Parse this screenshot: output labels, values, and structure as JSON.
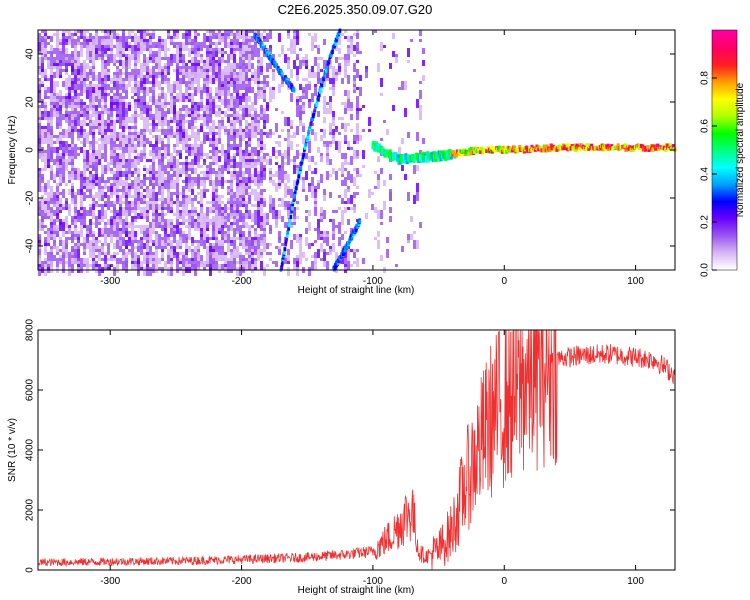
{
  "title": "C2E6.2025.350.09.07.G20",
  "chart_data": [
    {
      "type": "heatmap",
      "name": "spectrogram",
      "xlabel": "Height of straight line (km)",
      "ylabel": "Frequency (Hz)",
      "xlim": [
        -355,
        130
      ],
      "ylim": [
        -50,
        50
      ],
      "xticks": [
        -300,
        -200,
        -100,
        0,
        100
      ],
      "yticks": [
        -40,
        -20,
        0,
        20,
        40
      ],
      "colorbar": {
        "label": "Normalized spectral amplitude",
        "range": [
          0,
          1
        ],
        "ticks": [
          0.0,
          0.2,
          0.4,
          0.6,
          0.8
        ],
        "colors": [
          "#ffffff",
          "#d7b4f5",
          "#9a55f0",
          "#6a00ff",
          "#0000ff",
          "#00a0ff",
          "#00ffff",
          "#00ff80",
          "#00ff00",
          "#b0ff00",
          "#ffff00",
          "#ffa000",
          "#ff2020",
          "#ff0060",
          "#ff00a0"
        ]
      },
      "features": [
        {
          "name": "direct-signal-track",
          "points": [
            [
              -100,
              2
            ],
            [
              -80,
              -4
            ],
            [
              -60,
              -3
            ],
            [
              -40,
              -2
            ],
            [
              -20,
              0
            ],
            [
              0,
              0
            ],
            [
              40,
              1
            ],
            [
              100,
              1
            ],
            [
              130,
              1
            ]
          ]
        },
        {
          "name": "streak-1",
          "points": [
            [
              -190,
              48
            ],
            [
              -170,
              32
            ],
            [
              -160,
              25
            ]
          ]
        },
        {
          "name": "streak-2",
          "points": [
            [
              -170,
              -50
            ],
            [
              -160,
              -20
            ],
            [
              -150,
              5
            ],
            [
              -135,
              35
            ],
            [
              -125,
              50
            ]
          ]
        },
        {
          "name": "streak-3",
          "points": [
            [
              -130,
              -50
            ],
            [
              -120,
              -40
            ],
            [
              -110,
              -30
            ]
          ]
        }
      ]
    },
    {
      "type": "line",
      "name": "snr",
      "xlabel": "Height of straight line (km)",
      "ylabel": "SNR (10 * v/v)",
      "xlim": [
        -355,
        130
      ],
      "ylim": [
        0,
        8000
      ],
      "xticks": [
        -300,
        -200,
        -100,
        0,
        100
      ],
      "yticks": [
        0,
        2000,
        4000,
        6000,
        8000
      ],
      "color": "#f03030",
      "series": [
        {
          "name": "SNR",
          "x": [
            -355,
            -300,
            -250,
            -200,
            -150,
            -120,
            -100,
            -85,
            -75,
            -70,
            -65,
            -60,
            -50,
            -40,
            -30,
            -20,
            -10,
            0,
            10,
            20,
            30,
            40,
            60,
            80,
            100,
            115,
            130
          ],
          "y": [
            250,
            280,
            300,
            350,
            420,
            520,
            620,
            1200,
            1800,
            2000,
            600,
            450,
            650,
            1300,
            2800,
            4000,
            5000,
            5600,
            6000,
            6500,
            6900,
            7050,
            7150,
            7200,
            7100,
            7000,
            6500
          ]
        }
      ]
    }
  ]
}
